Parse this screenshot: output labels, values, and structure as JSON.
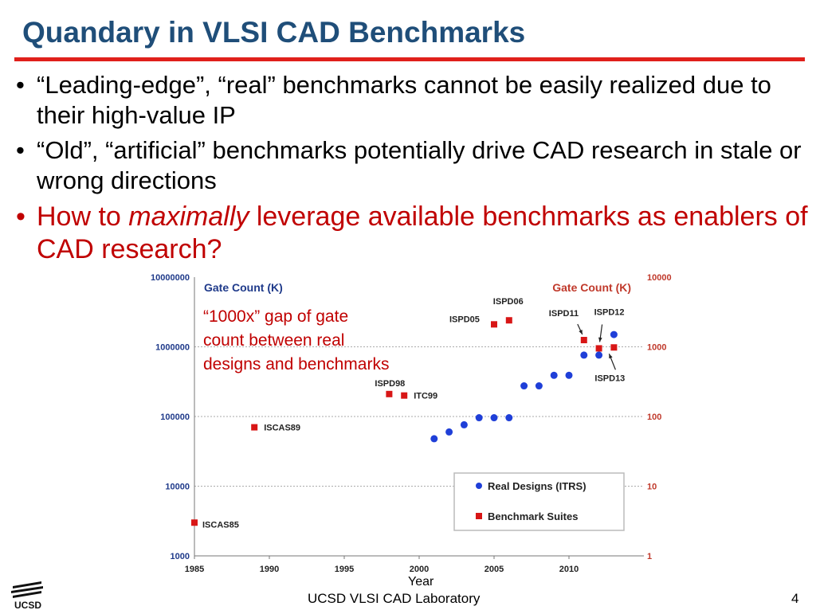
{
  "slide": {
    "title": "Quandary in VLSI CAD Benchmarks",
    "bullets": [
      {
        "text": "“Leading-edge”, “real” benchmarks cannot be easily realized due to their high-value IP"
      },
      {
        "text": "“Old”, “artificial” benchmarks potentially drive CAD research in stale or wrong directions"
      },
      {
        "pre": "How to ",
        "emph": "maximally",
        "post": " leverage available benchmarks as enablers of CAD research?"
      }
    ],
    "bullet_symbol": "•",
    "footer": "UCSD VLSI CAD Laboratory",
    "page_number": "4",
    "logo_text": "UCSD"
  },
  "colors": {
    "title": "#1f4e79",
    "rule": "#e0201b",
    "emphasis": "#c00000",
    "real": "#1f3fd8",
    "bench": "#d81616"
  },
  "chart_data": {
    "type": "scatter",
    "title": "",
    "xlabel": "Year",
    "xlim": [
      1985,
      2015
    ],
    "x_ticks": [
      1985,
      1990,
      1995,
      2000,
      2005,
      2010
    ],
    "left_axis": {
      "label": "Gate Count (K)",
      "scale": "log",
      "ylim": [
        1000,
        10000000
      ],
      "ticks": [
        "1000",
        "10000",
        "100000",
        "1000000",
        "10000000"
      ]
    },
    "right_axis": {
      "label": "Gate Count (K)",
      "scale": "log",
      "ylim": [
        1,
        10000
      ],
      "ticks": [
        "1",
        "10",
        "100",
        "1000",
        "10000"
      ]
    },
    "gridlines": [
      10000,
      100000,
      1000000
    ],
    "annotation": "“1000x” gap of gate count between real designs and benchmarks",
    "series": [
      {
        "name": "Real Designs (ITRS)",
        "marker": "circle",
        "points": [
          [
            2001,
            48000
          ],
          [
            2002,
            60000
          ],
          [
            2003,
            76000
          ],
          [
            2004,
            96000
          ],
          [
            2005,
            96000
          ],
          [
            2006,
            96000
          ],
          [
            2007,
            275000
          ],
          [
            2008,
            275000
          ],
          [
            2009,
            390000
          ],
          [
            2010,
            390000
          ],
          [
            2011,
            760000
          ],
          [
            2012,
            760000
          ],
          [
            2013,
            1500000
          ]
        ]
      },
      {
        "name": "Benchmark Suites",
        "marker": "square",
        "points": [
          {
            "x": 1985,
            "y": 3000,
            "label": "ISCAS85"
          },
          {
            "x": 1989,
            "y": 70000,
            "label": "ISCAS89"
          },
          {
            "x": 1998,
            "y": 210000,
            "label": "ISPD98"
          },
          {
            "x": 1999,
            "y": 200000,
            "label": "ITC99"
          },
          {
            "x": 2005,
            "y": 2100000,
            "label": "ISPD05"
          },
          {
            "x": 2006,
            "y": 2400000,
            "label": "ISPD06"
          },
          {
            "x": 2011,
            "y": 1250000,
            "label": "ISPD11"
          },
          {
            "x": 2012,
            "y": 950000,
            "label": "ISPD12"
          },
          {
            "x": 2013,
            "y": 980000,
            "label": "ISPD13"
          }
        ]
      }
    ]
  }
}
